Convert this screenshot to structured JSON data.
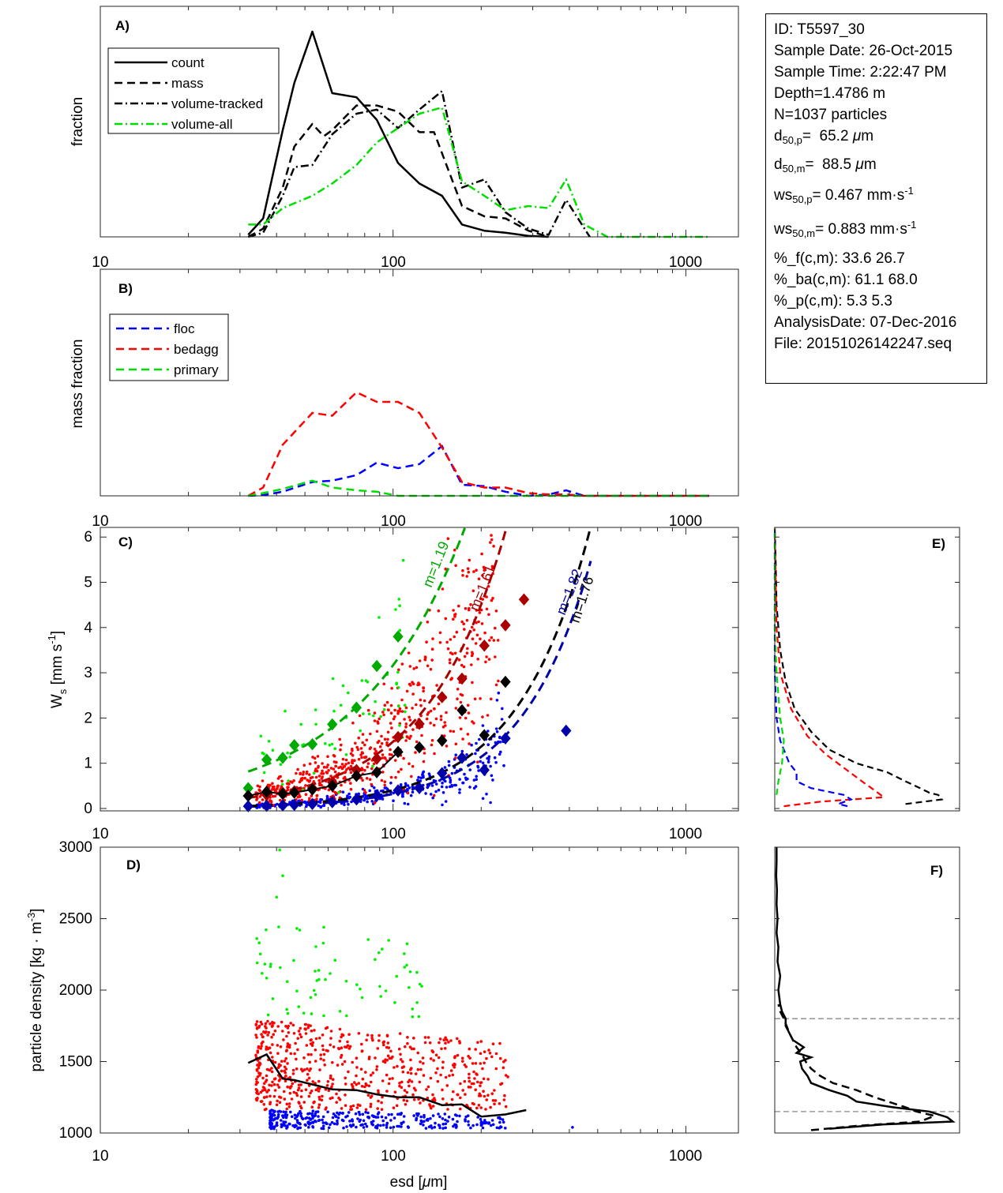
{
  "chart_data": [
    {
      "panel": "A)",
      "type": "line",
      "ylabel": "fraction",
      "xscale": "log",
      "xlim": [
        10,
        1500
      ],
      "x_ticks": [
        10,
        100,
        1000
      ],
      "x_tick_labels": [
        "10",
        "100",
        "1000"
      ],
      "legend": "top-left",
      "series": [
        {
          "name": "count",
          "style": "solid",
          "color": "#000000",
          "x": [
            32,
            36,
            42,
            46,
            53,
            62,
            75,
            88,
            104,
            123,
            147,
            172,
            205,
            242,
            290,
            340
          ],
          "y": [
            0.01,
            0.09,
            0.52,
            0.75,
            1.0,
            0.7,
            0.68,
            0.57,
            0.36,
            0.26,
            0.2,
            0.06,
            0.03,
            0.02,
            0.005,
            0.0
          ]
        },
        {
          "name": "mass",
          "style": "dashed",
          "color": "#000000",
          "x": [
            32,
            36,
            42,
            46,
            53,
            58,
            62,
            75,
            88,
            104,
            123,
            138,
            172,
            205,
            242,
            290,
            340
          ],
          "y": [
            0.0,
            0.04,
            0.24,
            0.44,
            0.55,
            0.49,
            0.52,
            0.64,
            0.64,
            0.61,
            0.51,
            0.51,
            0.15,
            0.1,
            0.09,
            0.03,
            0.0
          ]
        },
        {
          "name": "volume-tracked",
          "style": "dashdot",
          "color": "#000000",
          "x": [
            32,
            36,
            42,
            46,
            53,
            62,
            75,
            88,
            104,
            123,
            147,
            172,
            205,
            242,
            290,
            340,
            390,
            470
          ],
          "y": [
            0.0,
            0.02,
            0.2,
            0.34,
            0.35,
            0.5,
            0.6,
            0.62,
            0.53,
            0.62,
            0.71,
            0.24,
            0.28,
            0.12,
            0.04,
            0.01,
            0.18,
            0.0
          ]
        },
        {
          "name": "volume-all",
          "style": "dashdot",
          "color": "#00dd00",
          "x": [
            32,
            36,
            42,
            53,
            62,
            75,
            88,
            104,
            123,
            147,
            172,
            205,
            242,
            290,
            340,
            390,
            450,
            540,
            1200
          ],
          "y": [
            0.06,
            0.06,
            0.14,
            0.2,
            0.26,
            0.35,
            0.46,
            0.53,
            0.6,
            0.63,
            0.27,
            0.2,
            0.13,
            0.15,
            0.14,
            0.28,
            0.06,
            0.0,
            0.0
          ]
        }
      ]
    },
    {
      "panel": "B)",
      "type": "line",
      "ylabel": "mass fraction",
      "xscale": "log",
      "xlim": [
        10,
        1500
      ],
      "x_ticks": [
        10,
        100,
        1000
      ],
      "x_tick_labels": [
        "10",
        "100",
        "1000"
      ],
      "legend": "top-left",
      "series": [
        {
          "name": "floc",
          "style": "dashed",
          "color": "#0000ff",
          "x": [
            32,
            36,
            42,
            53,
            62,
            75,
            88,
            104,
            123,
            147,
            172,
            205,
            242,
            290,
            340,
            390,
            450,
            540,
            1200
          ],
          "y": [
            0.0,
            0.005,
            0.03,
            0.1,
            0.11,
            0.15,
            0.24,
            0.2,
            0.23,
            0.36,
            0.08,
            0.07,
            0.03,
            0.0,
            0.01,
            0.04,
            0.0,
            0.0,
            0.0
          ]
        },
        {
          "name": "bedagg",
          "style": "dashed",
          "color": "#ff0000",
          "x": [
            32,
            36,
            42,
            53,
            62,
            75,
            88,
            104,
            123,
            147,
            172,
            205,
            242,
            290,
            340,
            390,
            450,
            540,
            1200
          ],
          "y": [
            0.0,
            0.06,
            0.37,
            0.6,
            0.58,
            0.75,
            0.68,
            0.68,
            0.6,
            0.35,
            0.1,
            0.06,
            0.06,
            0.02,
            0.01,
            0.01,
            0.0,
            0.0,
            0.0
          ]
        },
        {
          "name": "primary",
          "style": "dashed",
          "color": "#00dd00",
          "x": [
            32,
            36,
            42,
            53,
            62,
            75,
            88,
            104,
            123,
            147,
            172,
            205,
            242,
            290,
            340,
            390,
            450,
            540,
            1200
          ],
          "y": [
            0.0,
            0.02,
            0.05,
            0.11,
            0.06,
            0.04,
            0.03,
            0.0,
            0.0,
            0.0,
            0.0,
            0.0,
            0.0,
            0.0,
            0.0,
            0.0,
            0.0,
            0.0,
            0.0
          ]
        }
      ]
    },
    {
      "panel": "C)",
      "type": "scatter",
      "ylabel": "W",
      "ylabel_sub": "s",
      "ylabel_rest": " [mm s",
      "ylabel_sup": "-1",
      "ylabel_close": "]",
      "xscale": "log",
      "xlim": [
        10,
        1500
      ],
      "ylim": [
        0,
        6.2
      ],
      "x_ticks": [
        10,
        100,
        1000
      ],
      "x_tick_labels": [
        "10",
        "100",
        "1000"
      ],
      "y_ticks": [
        0,
        1,
        2,
        3,
        4,
        5,
        6
      ],
      "y_tick_labels": [
        "0",
        "1",
        "2",
        "3",
        "4",
        "5",
        "6"
      ],
      "binned_medians": [
        {
          "name": "primary",
          "color": "#00aa00",
          "x": [
            32,
            37,
            42,
            46,
            53,
            62,
            75,
            88,
            104
          ],
          "y": [
            0.45,
            1.08,
            1.12,
            1.4,
            1.42,
            1.86,
            2.23,
            3.15,
            3.8
          ]
        },
        {
          "name": "bedagg",
          "color": "#aa0000",
          "x": [
            32,
            37,
            42,
            46,
            53,
            62,
            75,
            88,
            104,
            123,
            147,
            172,
            205,
            242,
            280
          ],
          "y": [
            0.28,
            0.3,
            0.35,
            0.38,
            0.45,
            0.58,
            0.85,
            1.1,
            1.58,
            1.87,
            2.46,
            2.87,
            3.6,
            4.05,
            4.62
          ]
        },
        {
          "name": "all",
          "color": "#000000",
          "x": [
            32,
            37,
            42,
            46,
            53,
            62,
            75,
            88,
            104,
            123,
            147,
            172,
            205,
            242
          ],
          "y": [
            0.28,
            0.37,
            0.32,
            0.35,
            0.42,
            0.5,
            0.72,
            0.8,
            1.25,
            1.35,
            1.5,
            2.17,
            1.62,
            2.8
          ]
        },
        {
          "name": "floc",
          "color": "#0000aa",
          "x": [
            32,
            37,
            42,
            46,
            53,
            62,
            75,
            88,
            104,
            123,
            147,
            172,
            205,
            242,
            390
          ],
          "y": [
            0.05,
            0.06,
            0.07,
            0.08,
            0.1,
            0.14,
            0.2,
            0.28,
            0.4,
            0.45,
            0.78,
            1.12,
            0.85,
            1.55,
            1.72
          ]
        }
      ],
      "fits": [
        {
          "label": "m=1.19",
          "color": "#00aa00",
          "m": 1.19,
          "a": 0.0132,
          "xmax": 180
        },
        {
          "label": "m=1.61",
          "color": "#aa0000",
          "m": 1.61,
          "a": 0.00089,
          "xmax": 265
        },
        {
          "label": "m=1.82",
          "color": "#0000aa",
          "m": 1.82,
          "a": 7.4e-05,
          "xmax": 480
        },
        {
          "label": "m=1.76",
          "color": "#000000",
          "m": 1.76,
          "a": 0.000122,
          "xmax": 490
        }
      ],
      "n_points": 1037
    },
    {
      "panel": "D)",
      "type": "scatter",
      "ylabel": "particle density [kg · m",
      "ylabel_sup": "-3",
      "ylabel_close": "]",
      "xlabel": "esd [",
      "xlabel_mu": "μ",
      "xlabel_rest": "m]",
      "xscale": "log",
      "xlim": [
        10,
        1500
      ],
      "ylim": [
        1000,
        3000
      ],
      "x_ticks": [
        10,
        100,
        1000
      ],
      "x_tick_labels": [
        "10",
        "100",
        "1000"
      ],
      "y_ticks": [
        1000,
        1500,
        2000,
        2500,
        3000
      ],
      "y_tick_labels": [
        "1000",
        "1500",
        "2000",
        "2500",
        "3000"
      ],
      "median_line": {
        "x": [
          32,
          37,
          42,
          46,
          53,
          62,
          75,
          88,
          104,
          123,
          147,
          172,
          200,
          242,
          285
        ],
        "y": [
          1490,
          1550,
          1380,
          1370,
          1340,
          1305,
          1300,
          1270,
          1250,
          1250,
          1195,
          1200,
          1115,
          1130,
          1160
        ]
      }
    },
    {
      "panel": "E)",
      "type": "line",
      "orientation": "vertical-distribution",
      "ylim": [
        0,
        6.2
      ],
      "series": [
        {
          "name": "all",
          "color": "#000000",
          "w": [
            0.1,
            0.2,
            0.3,
            0.35,
            0.45,
            0.6,
            0.8,
            1.0,
            1.3,
            1.7,
            2.2,
            2.8,
            3.5,
            4.5,
            5.5,
            6.2
          ],
          "f": [
            0.72,
            0.92,
            0.9,
            0.85,
            0.8,
            0.72,
            0.62,
            0.45,
            0.3,
            0.2,
            0.11,
            0.06,
            0.03,
            0.01,
            0.005,
            0.0
          ]
        },
        {
          "name": "bedagg",
          "color": "#ff0000",
          "w": [
            0.05,
            0.15,
            0.25,
            0.4,
            0.6,
            0.9,
            1.2,
            1.6,
            2.2,
            3.0,
            4.0,
            6.2
          ],
          "f": [
            0.05,
            0.25,
            0.6,
            0.55,
            0.48,
            0.38,
            0.28,
            0.18,
            0.09,
            0.03,
            0.01,
            0.0
          ]
        },
        {
          "name": "floc",
          "color": "#0000ff",
          "w": [
            0.05,
            0.1,
            0.2,
            0.3,
            0.45,
            0.6,
            0.8,
            1.0,
            1.5,
            2.0,
            3.0,
            6.2
          ],
          "f": [
            0.4,
            0.35,
            0.42,
            0.38,
            0.2,
            0.12,
            0.12,
            0.08,
            0.03,
            0.01,
            0.0,
            0.0
          ]
        },
        {
          "name": "primary",
          "color": "#00dd00",
          "w": [
            0.3,
            0.6,
            1.0,
            1.5,
            2.0,
            2.5,
            3.0,
            4.0,
            6.2
          ],
          "f": [
            0.01,
            0.02,
            0.04,
            0.05,
            0.03,
            0.02,
            0.01,
            0.0,
            0.0
          ]
        }
      ]
    },
    {
      "panel": "F)",
      "type": "line",
      "orientation": "vertical-distribution",
      "ylim": [
        1000,
        3000
      ],
      "reference_lines": [
        1150,
        1800
      ],
      "series": [
        {
          "name": "count",
          "style": "solid",
          "color": "#000000",
          "rho": [
            1030,
            1060,
            1080,
            1110,
            1150,
            1180,
            1220,
            1260,
            1300,
            1350,
            1400,
            1450,
            1500,
            1530,
            1560,
            1600,
            1650,
            1700,
            1750,
            1800,
            1850,
            1900,
            2000,
            2100,
            2200,
            2300,
            2400,
            2500,
            2600,
            2700,
            2800,
            2900,
            3000
          ],
          "f": [
            0.3,
            0.6,
            0.98,
            0.95,
            0.85,
            0.65,
            0.45,
            0.4,
            0.3,
            0.2,
            0.18,
            0.15,
            0.14,
            0.2,
            0.12,
            0.16,
            0.1,
            0.08,
            0.06,
            0.06,
            0.04,
            0.03,
            0.02,
            0.03,
            0.015,
            0.02,
            0.01,
            0.015,
            0.01,
            0.012,
            0.008,
            0.01,
            0.01
          ]
        },
        {
          "name": "mass",
          "style": "dashed",
          "color": "#000000",
          "rho": [
            1020,
            1050,
            1080,
            1120,
            1150,
            1180,
            1250,
            1300,
            1350,
            1400,
            1450,
            1500,
            1550,
            1600,
            1700,
            1800,
            1850,
            1900
          ],
          "f": [
            0.2,
            0.45,
            0.8,
            0.88,
            0.78,
            0.72,
            0.55,
            0.45,
            0.32,
            0.25,
            0.2,
            0.17,
            0.15,
            0.12,
            0.08,
            0.05,
            0.03,
            0.02
          ]
        }
      ]
    }
  ],
  "panel_labels": {
    "A": "A)",
    "B": "B)",
    "C": "C)",
    "D": "D)",
    "E": "E)",
    "F": "F)"
  },
  "legend_A": [
    "count",
    "mass",
    "volume-tracked",
    "volume-all"
  ],
  "legend_B": [
    "floc",
    "bedagg",
    "primary"
  ],
  "info_box": {
    "id": "ID: T5597_30",
    "sample_date": "Sample Date: 26-Oct-2015",
    "sample_time": "Sample Time:  2:22:47 PM",
    "depth": "Depth=1.4786 m",
    "n": "N=1037 particles",
    "d50p_pre": "d",
    "d50p_sub": "50,p",
    "d50p_eq": "=  65.2 ",
    "d50p_mu": "μ",
    "d50p_unit": "m",
    "d50m_pre": "d",
    "d50m_sub": "50,m",
    "d50m_eq": "=  88.5 ",
    "d50m_mu": "μ",
    "d50m_unit": "m",
    "ws50p_pre": "ws",
    "ws50p_sub": "50,p",
    "ws50p_eq": "= 0.467 mm·s",
    "ws50p_sup": "-1",
    "ws50m_pre": "ws",
    "ws50m_sub": "50,m",
    "ws50m_eq": "= 0.883 mm·s",
    "ws50m_sup": "-1",
    "pct_f": "%_f(c,m): 33.6 26.7",
    "pct_ba": "%_ba(c,m): 61.1 68.0",
    "pct_p": "%_p(c,m): 5.3 5.3",
    "analysis_date": "AnalysisDate: 07-Dec-2016",
    "file": "File: 20151026142247.seq"
  }
}
